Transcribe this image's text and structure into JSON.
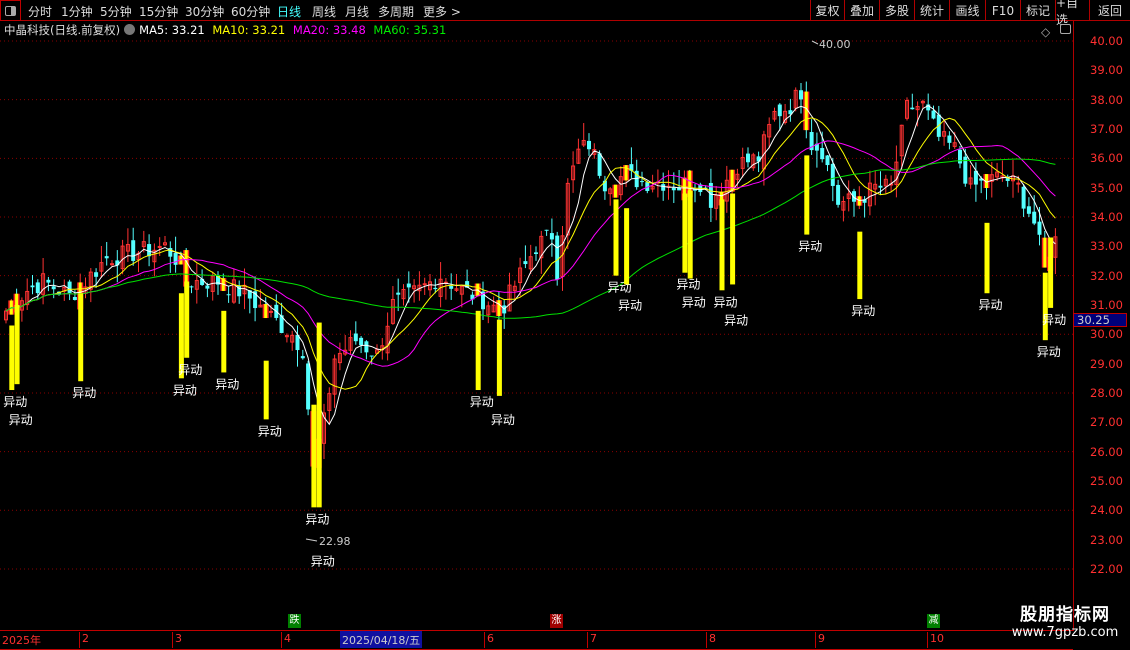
{
  "toolbar": {
    "periods": [
      "分时",
      "1分钟",
      "5分钟",
      "15分钟",
      "30分钟",
      "60分钟",
      "日线",
      "周线",
      "月线",
      "多周期",
      "更多 >"
    ],
    "active_period": "日线",
    "buttons": [
      "复权",
      "叠加",
      "多股",
      "统计",
      "画线",
      "F10",
      "标记",
      "+自选",
      "返回"
    ]
  },
  "info": {
    "title": "中晶科技(日线.前复权)",
    "ma5": "MA5: 33.21",
    "ma10": "MA10: 33.21",
    "ma20": "MA20: 33.48",
    "ma60": "MA60: 35.31"
  },
  "colors": {
    "up": "#ff3232",
    "down": "#54ffff",
    "ma5": "#ffffff",
    "ma10": "#ffff00",
    "ma20": "#ff00ff",
    "ma60": "#00e000",
    "signal": "#ffff00",
    "axis": "#ff3030"
  },
  "price_axis": {
    "labels": [
      "40.00",
      "39.00",
      "38.00",
      "37.00",
      "36.00",
      "35.00",
      "34.00",
      "33.00",
      "32.00",
      "31.00",
      "30.00",
      "29.00",
      "28.00",
      "27.00",
      "26.00",
      "25.00",
      "24.00",
      "23.00",
      "22.00"
    ],
    "current": "30.25"
  },
  "date_axis": {
    "months": [
      "2025年",
      "2",
      "3",
      "4",
      "6",
      "7",
      "8",
      "9",
      "10"
    ],
    "cursor_date": "2025/04/18/五"
  },
  "markers": [
    {
      "text": "跌",
      "color": "#008000"
    },
    {
      "text": "涨",
      "color": "#a00000"
    },
    {
      "text": "减",
      "color": "#008000"
    }
  ],
  "annotations": {
    "high": "40.00",
    "low": "22.98"
  },
  "watermark": {
    "name": "股朋指标网",
    "url": "www.7gpzb.com"
  },
  "chart_data": {
    "type": "candlestick",
    "ylim": [
      21.5,
      40.5
    ],
    "grid": "dotted every 2.00",
    "close_keypoints": [
      [
        0,
        30.8
      ],
      [
        4,
        31.5
      ],
      [
        7,
        31.8
      ],
      [
        12,
        31.3
      ],
      [
        15,
        31.8
      ],
      [
        19,
        32.6
      ],
      [
        25,
        32.8
      ],
      [
        30,
        33.0
      ],
      [
        32,
        32.6
      ],
      [
        34,
        31.8
      ],
      [
        40,
        31.8
      ],
      [
        45,
        31.4
      ],
      [
        50,
        30.6
      ],
      [
        54,
        30.0
      ],
      [
        56,
        29.5
      ],
      [
        57,
        27.5
      ],
      [
        58,
        25.5
      ],
      [
        59,
        26.2
      ],
      [
        60,
        27.0
      ],
      [
        62,
        29.2
      ],
      [
        66,
        29.8
      ],
      [
        70,
        29.3
      ],
      [
        73,
        31.0
      ],
      [
        78,
        31.5
      ],
      [
        82,
        32.0
      ],
      [
        86,
        31.5
      ],
      [
        90,
        31.2
      ],
      [
        93,
        30.8
      ],
      [
        94,
        31.0
      ],
      [
        97,
        32.0
      ],
      [
        100,
        33.0
      ],
      [
        103,
        33.4
      ],
      [
        104,
        32.2
      ],
      [
        106,
        35.0
      ],
      [
        108,
        36.2
      ],
      [
        110,
        36.5
      ],
      [
        113,
        35.2
      ],
      [
        117,
        35.4
      ],
      [
        120,
        35.2
      ],
      [
        124,
        35.2
      ],
      [
        128,
        35.0
      ],
      [
        131,
        35.2
      ],
      [
        133,
        34.6
      ],
      [
        135,
        35.0
      ],
      [
        138,
        35.8
      ],
      [
        142,
        36.0
      ],
      [
        145,
        37.5
      ],
      [
        148,
        37.8
      ],
      [
        150,
        38.3
      ],
      [
        152,
        36.5
      ],
      [
        154,
        36.3
      ],
      [
        157,
        34.5
      ],
      [
        160,
        34.5
      ],
      [
        164,
        35.0
      ],
      [
        167,
        35.0
      ],
      [
        170,
        37.7
      ],
      [
        173,
        37.8
      ],
      [
        176,
        36.7
      ],
      [
        179,
        36.3
      ],
      [
        182,
        35.0
      ],
      [
        185,
        35.2
      ],
      [
        188,
        35.4
      ],
      [
        191,
        35.0
      ],
      [
        194,
        33.8
      ],
      [
        196,
        32.3
      ],
      [
        198,
        33.2
      ]
    ],
    "signals": [
      {
        "i": 1,
        "top": 30.3,
        "bottom": 28.1,
        "label": "异动"
      },
      {
        "i": 2,
        "top": 31.0,
        "bottom": 28.3,
        "label": "异动"
      },
      {
        "i": 14,
        "top": 31.4,
        "bottom": 28.4,
        "label": "异动"
      },
      {
        "i": 33,
        "top": 31.4,
        "bottom": 28.5,
        "label": "异动"
      },
      {
        "i": 34,
        "top": 31.8,
        "bottom": 29.2,
        "label": "异动"
      },
      {
        "i": 41,
        "top": 30.8,
        "bottom": 28.7,
        "label": "异动"
      },
      {
        "i": 49,
        "top": 29.1,
        "bottom": 27.1,
        "label": "异动"
      },
      {
        "i": 58,
        "top": 27.6,
        "bottom": 24.1,
        "label": "异动"
      },
      {
        "i": 59,
        "top": 30.4,
        "bottom": 24.1,
        "label": "异动"
      },
      {
        "i": 89,
        "top": 30.8,
        "bottom": 28.1,
        "label": "异动"
      },
      {
        "i": 93,
        "top": 30.5,
        "bottom": 27.9,
        "label": "异动"
      },
      {
        "i": 115,
        "top": 34.6,
        "bottom": 32.0,
        "label": "异动"
      },
      {
        "i": 117,
        "top": 34.3,
        "bottom": 31.7,
        "label": "异动"
      },
      {
        "i": 128,
        "top": 34.8,
        "bottom": 32.1,
        "label": "异动"
      },
      {
        "i": 129,
        "top": 34.9,
        "bottom": 31.9,
        "label": "异动"
      },
      {
        "i": 135,
        "top": 34.6,
        "bottom": 31.5,
        "label": "异动"
      },
      {
        "i": 137,
        "top": 34.8,
        "bottom": 31.7,
        "label": "异动"
      },
      {
        "i": 151,
        "top": 36.1,
        "bottom": 33.4,
        "label": "异动"
      },
      {
        "i": 161,
        "top": 33.5,
        "bottom": 31.2,
        "label": "异动"
      },
      {
        "i": 185,
        "top": 33.8,
        "bottom": 31.4,
        "label": "异动"
      },
      {
        "i": 196,
        "top": 32.1,
        "bottom": 29.8,
        "label": "异动"
      },
      {
        "i": 197,
        "top": 33.3,
        "bottom": 30.9,
        "label": "异动"
      }
    ]
  }
}
